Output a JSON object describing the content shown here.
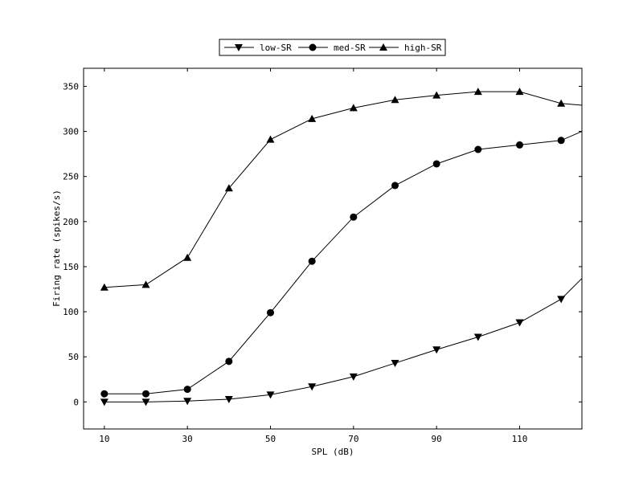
{
  "chart_data": {
    "type": "line",
    "title": "",
    "xlabel": "SPL (dB)",
    "ylabel": "Firing rate (spikes/s)",
    "xlim": [
      5,
      125
    ],
    "ylim": [
      -30,
      370
    ],
    "xticks": [
      10,
      30,
      50,
      70,
      90,
      110
    ],
    "yticks": [
      0,
      50,
      100,
      150,
      200,
      250,
      300,
      350
    ],
    "grid": false,
    "legend_position": "top-center",
    "series": [
      {
        "name": "low-SR",
        "marker": "triangle-down",
        "x": [
          10,
          20,
          30,
          40,
          50,
          60,
          70,
          80,
          90,
          100,
          110,
          120,
          125
        ],
        "y": [
          0,
          0,
          1,
          3,
          8,
          17,
          28,
          43,
          58,
          72,
          88,
          114,
          137
        ],
        "marker_count": 12
      },
      {
        "name": "med-SR",
        "marker": "circle",
        "x": [
          10,
          20,
          30,
          40,
          50,
          60,
          70,
          80,
          90,
          100,
          110,
          120,
          125
        ],
        "y": [
          9,
          9,
          14,
          45,
          99,
          156,
          205,
          240,
          264,
          280,
          285,
          290,
          300
        ],
        "marker_count": 12
      },
      {
        "name": "high-SR",
        "marker": "triangle-up",
        "x": [
          10,
          20,
          30,
          40,
          50,
          60,
          70,
          80,
          90,
          100,
          110,
          120,
          125
        ],
        "y": [
          127,
          130,
          160,
          237,
          291,
          314,
          326,
          335,
          340,
          344,
          344,
          331,
          329
        ],
        "marker_count": 12
      }
    ]
  }
}
